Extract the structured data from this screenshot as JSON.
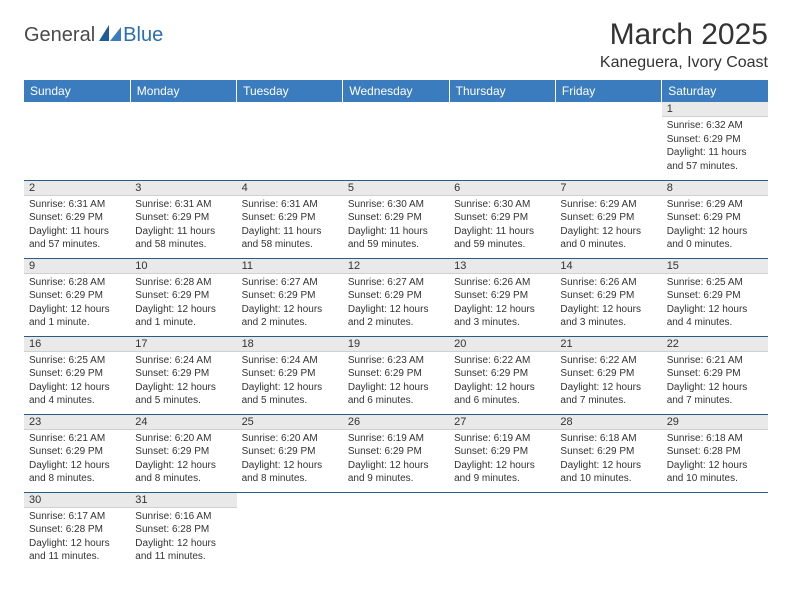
{
  "logo": {
    "general": "General",
    "blue": "Blue"
  },
  "title": "March 2025",
  "location": "Kaneguera, Ivory Coast",
  "colors": {
    "header_bg": "#3b7cbf",
    "header_text": "#ffffff",
    "daynum_bg": "#e9e9e9",
    "border": "#2a5a8a",
    "logo_blue": "#2a6db0"
  },
  "weekdays": [
    "Sunday",
    "Monday",
    "Tuesday",
    "Wednesday",
    "Thursday",
    "Friday",
    "Saturday"
  ],
  "weeks": [
    [
      null,
      null,
      null,
      null,
      null,
      null,
      {
        "n": "1",
        "sr": "Sunrise: 6:32 AM",
        "ss": "Sunset: 6:29 PM",
        "dl": "Daylight: 11 hours and 57 minutes."
      }
    ],
    [
      {
        "n": "2",
        "sr": "Sunrise: 6:31 AM",
        "ss": "Sunset: 6:29 PM",
        "dl": "Daylight: 11 hours and 57 minutes."
      },
      {
        "n": "3",
        "sr": "Sunrise: 6:31 AM",
        "ss": "Sunset: 6:29 PM",
        "dl": "Daylight: 11 hours and 58 minutes."
      },
      {
        "n": "4",
        "sr": "Sunrise: 6:31 AM",
        "ss": "Sunset: 6:29 PM",
        "dl": "Daylight: 11 hours and 58 minutes."
      },
      {
        "n": "5",
        "sr": "Sunrise: 6:30 AM",
        "ss": "Sunset: 6:29 PM",
        "dl": "Daylight: 11 hours and 59 minutes."
      },
      {
        "n": "6",
        "sr": "Sunrise: 6:30 AM",
        "ss": "Sunset: 6:29 PM",
        "dl": "Daylight: 11 hours and 59 minutes."
      },
      {
        "n": "7",
        "sr": "Sunrise: 6:29 AM",
        "ss": "Sunset: 6:29 PM",
        "dl": "Daylight: 12 hours and 0 minutes."
      },
      {
        "n": "8",
        "sr": "Sunrise: 6:29 AM",
        "ss": "Sunset: 6:29 PM",
        "dl": "Daylight: 12 hours and 0 minutes."
      }
    ],
    [
      {
        "n": "9",
        "sr": "Sunrise: 6:28 AM",
        "ss": "Sunset: 6:29 PM",
        "dl": "Daylight: 12 hours and 1 minute."
      },
      {
        "n": "10",
        "sr": "Sunrise: 6:28 AM",
        "ss": "Sunset: 6:29 PM",
        "dl": "Daylight: 12 hours and 1 minute."
      },
      {
        "n": "11",
        "sr": "Sunrise: 6:27 AM",
        "ss": "Sunset: 6:29 PM",
        "dl": "Daylight: 12 hours and 2 minutes."
      },
      {
        "n": "12",
        "sr": "Sunrise: 6:27 AM",
        "ss": "Sunset: 6:29 PM",
        "dl": "Daylight: 12 hours and 2 minutes."
      },
      {
        "n": "13",
        "sr": "Sunrise: 6:26 AM",
        "ss": "Sunset: 6:29 PM",
        "dl": "Daylight: 12 hours and 3 minutes."
      },
      {
        "n": "14",
        "sr": "Sunrise: 6:26 AM",
        "ss": "Sunset: 6:29 PM",
        "dl": "Daylight: 12 hours and 3 minutes."
      },
      {
        "n": "15",
        "sr": "Sunrise: 6:25 AM",
        "ss": "Sunset: 6:29 PM",
        "dl": "Daylight: 12 hours and 4 minutes."
      }
    ],
    [
      {
        "n": "16",
        "sr": "Sunrise: 6:25 AM",
        "ss": "Sunset: 6:29 PM",
        "dl": "Daylight: 12 hours and 4 minutes."
      },
      {
        "n": "17",
        "sr": "Sunrise: 6:24 AM",
        "ss": "Sunset: 6:29 PM",
        "dl": "Daylight: 12 hours and 5 minutes."
      },
      {
        "n": "18",
        "sr": "Sunrise: 6:24 AM",
        "ss": "Sunset: 6:29 PM",
        "dl": "Daylight: 12 hours and 5 minutes."
      },
      {
        "n": "19",
        "sr": "Sunrise: 6:23 AM",
        "ss": "Sunset: 6:29 PM",
        "dl": "Daylight: 12 hours and 6 minutes."
      },
      {
        "n": "20",
        "sr": "Sunrise: 6:22 AM",
        "ss": "Sunset: 6:29 PM",
        "dl": "Daylight: 12 hours and 6 minutes."
      },
      {
        "n": "21",
        "sr": "Sunrise: 6:22 AM",
        "ss": "Sunset: 6:29 PM",
        "dl": "Daylight: 12 hours and 7 minutes."
      },
      {
        "n": "22",
        "sr": "Sunrise: 6:21 AM",
        "ss": "Sunset: 6:29 PM",
        "dl": "Daylight: 12 hours and 7 minutes."
      }
    ],
    [
      {
        "n": "23",
        "sr": "Sunrise: 6:21 AM",
        "ss": "Sunset: 6:29 PM",
        "dl": "Daylight: 12 hours and 8 minutes."
      },
      {
        "n": "24",
        "sr": "Sunrise: 6:20 AM",
        "ss": "Sunset: 6:29 PM",
        "dl": "Daylight: 12 hours and 8 minutes."
      },
      {
        "n": "25",
        "sr": "Sunrise: 6:20 AM",
        "ss": "Sunset: 6:29 PM",
        "dl": "Daylight: 12 hours and 8 minutes."
      },
      {
        "n": "26",
        "sr": "Sunrise: 6:19 AM",
        "ss": "Sunset: 6:29 PM",
        "dl": "Daylight: 12 hours and 9 minutes."
      },
      {
        "n": "27",
        "sr": "Sunrise: 6:19 AM",
        "ss": "Sunset: 6:29 PM",
        "dl": "Daylight: 12 hours and 9 minutes."
      },
      {
        "n": "28",
        "sr": "Sunrise: 6:18 AM",
        "ss": "Sunset: 6:29 PM",
        "dl": "Daylight: 12 hours and 10 minutes."
      },
      {
        "n": "29",
        "sr": "Sunrise: 6:18 AM",
        "ss": "Sunset: 6:28 PM",
        "dl": "Daylight: 12 hours and 10 minutes."
      }
    ],
    [
      {
        "n": "30",
        "sr": "Sunrise: 6:17 AM",
        "ss": "Sunset: 6:28 PM",
        "dl": "Daylight: 12 hours and 11 minutes."
      },
      {
        "n": "31",
        "sr": "Sunrise: 6:16 AM",
        "ss": "Sunset: 6:28 PM",
        "dl": "Daylight: 12 hours and 11 minutes."
      },
      null,
      null,
      null,
      null,
      null
    ]
  ]
}
